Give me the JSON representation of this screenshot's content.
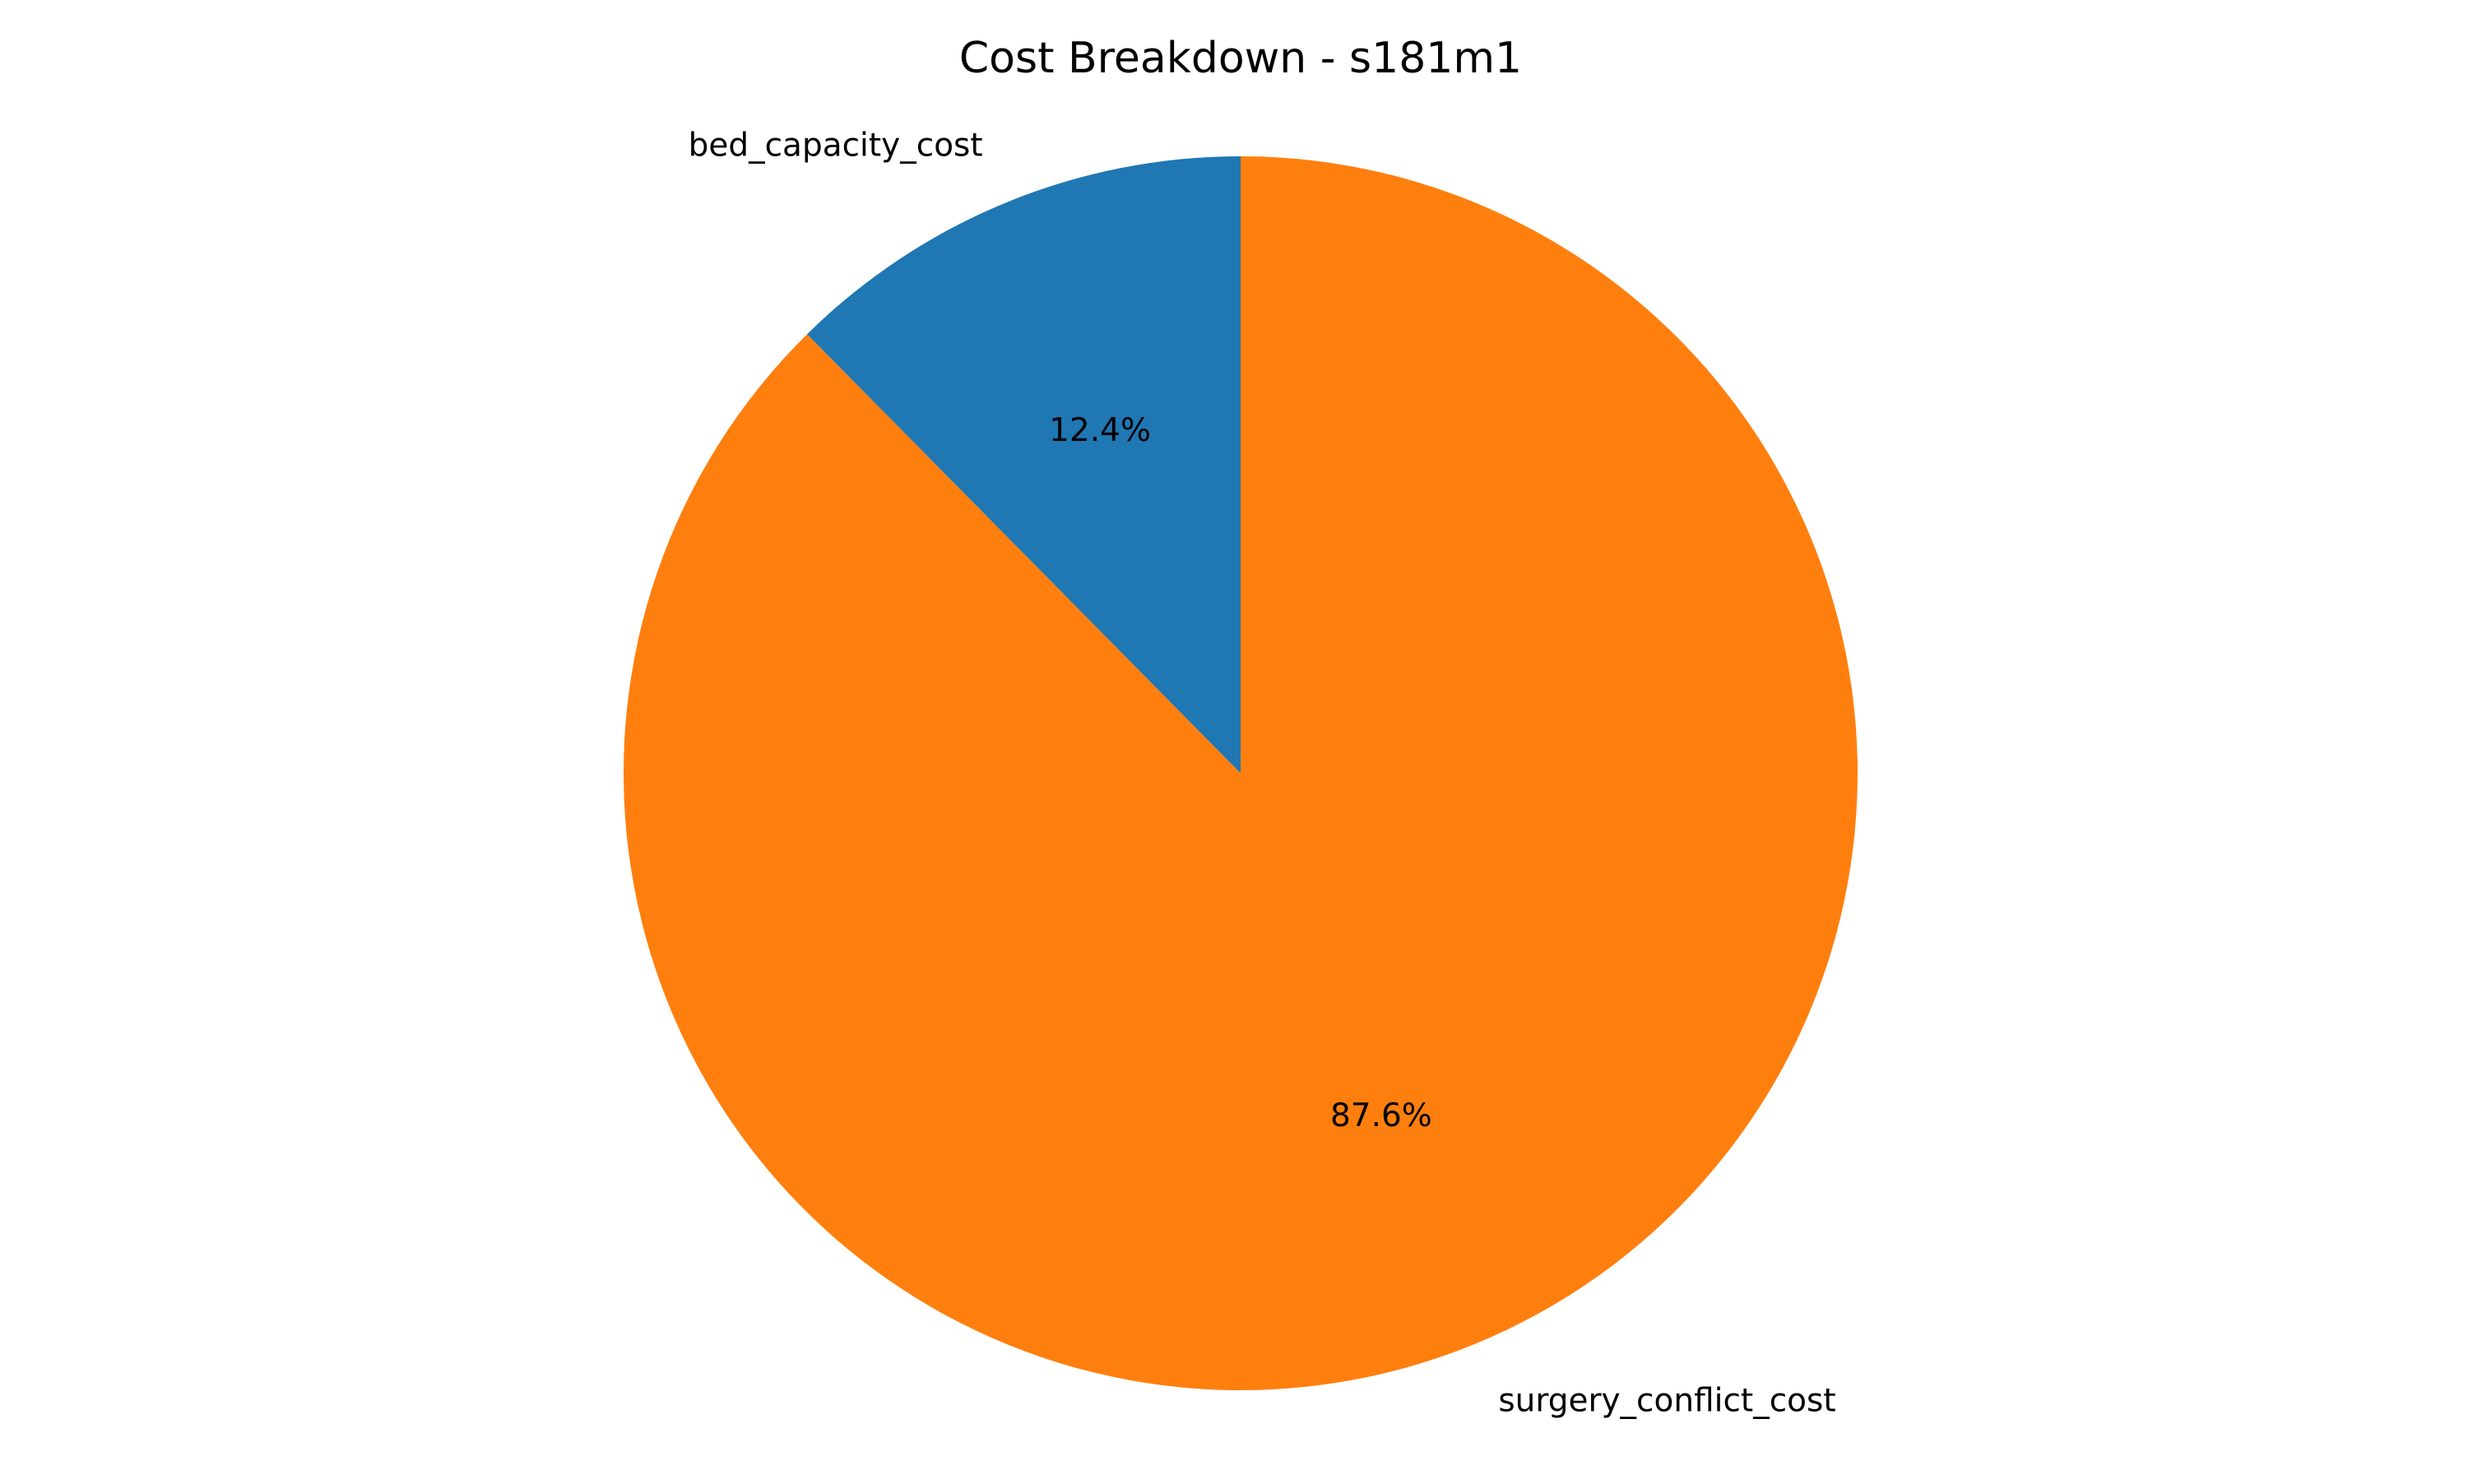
{
  "chart_data": {
    "type": "pie",
    "title": "Cost Breakdown - s181m1",
    "slices": [
      {
        "label": "bed_capacity_cost",
        "value": 12.4,
        "pct_label": "12.4%",
        "color": "#1f77b4"
      },
      {
        "label": "surgery_conflict_cost",
        "value": 87.6,
        "pct_label": "87.6%",
        "color": "#ff7f0e"
      }
    ],
    "start_angle_deg": 90,
    "direction": "counterclockwise",
    "legend": "none"
  }
}
